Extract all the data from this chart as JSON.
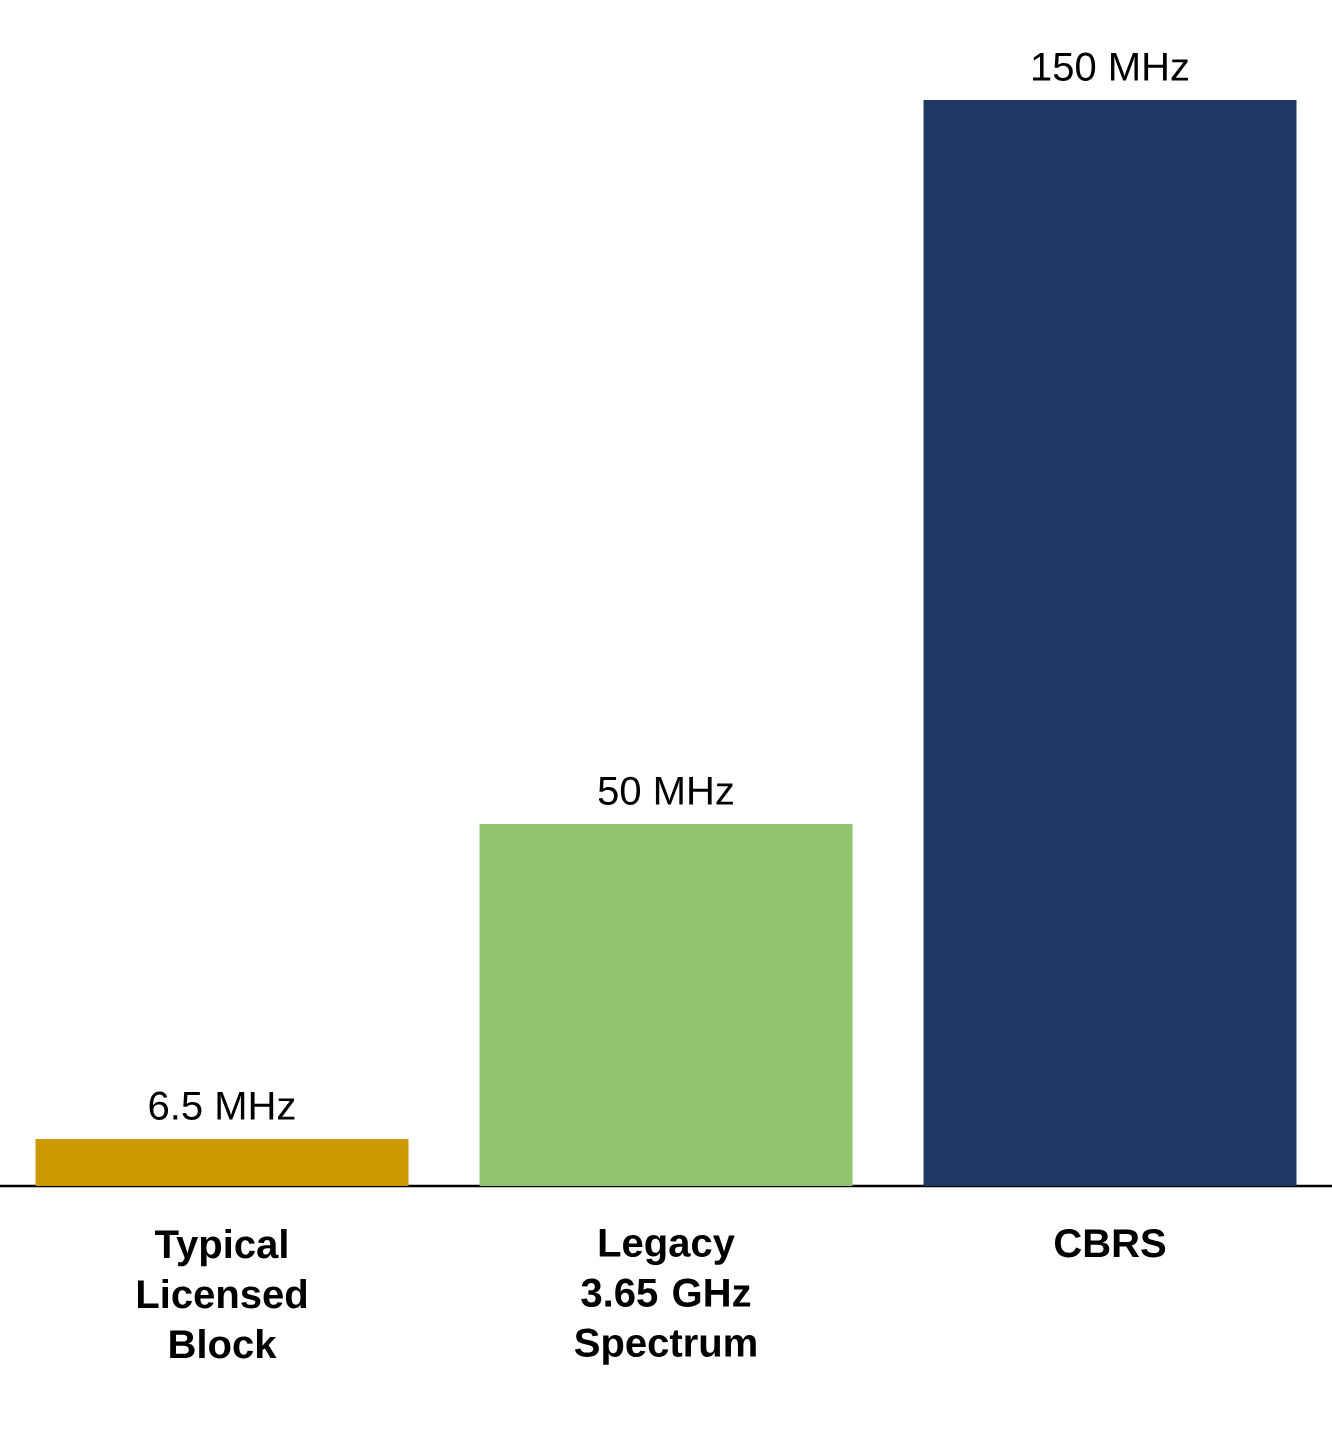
{
  "chart_data": {
    "type": "bar",
    "categories": [
      "Typical Licensed Block",
      "Legacy 3.65 GHz Spectrum",
      "CBRS"
    ],
    "values": [
      6.5,
      50,
      150
    ],
    "colors": [
      "#cc9900",
      "#8fc36e",
      "#1f3864"
    ],
    "value_labels": [
      "6.5 MHz",
      "50 MHz",
      "150 MHz"
    ]
  }
}
